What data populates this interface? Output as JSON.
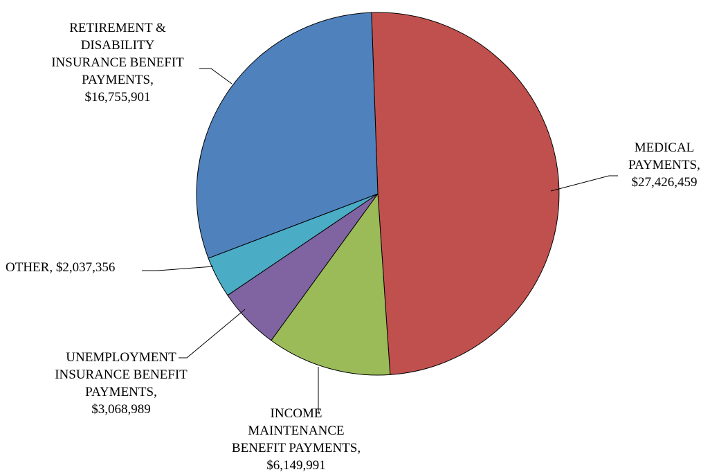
{
  "chart_data": {
    "type": "pie",
    "title": "",
    "start_angle_deg": -2,
    "direction": "clockwise",
    "slices": [
      {
        "label_lines": [
          "MEDICAL",
          "PAYMENTS,",
          "$27,426,459"
        ],
        "category": "MEDICAL PAYMENTS",
        "value": 27426459,
        "color": "#C0504D"
      },
      {
        "label_lines": [
          "INCOME",
          "MAINTENANCE",
          "BENEFIT PAYMENTS,",
          "$6,149,991"
        ],
        "category": "INCOME MAINTENANCE BENEFIT PAYMENTS",
        "value": 6149991,
        "color": "#9BBB59"
      },
      {
        "label_lines": [
          "UNEMPLOYMENT",
          "INSURANCE BENEFIT",
          "PAYMENTS,",
          "$3,068,989"
        ],
        "category": "UNEMPLOYMENT INSURANCE BENEFIT PAYMENTS",
        "value": 3068989,
        "color": "#8064A2"
      },
      {
        "label_lines": [
          "OTHER,  $2,037,356"
        ],
        "category": "OTHER",
        "value": 2037356,
        "color": "#4BACC6"
      },
      {
        "label_lines": [
          "RETIREMENT &",
          "DISABILITY",
          "INSURANCE BENEFIT",
          "PAYMENTS,",
          "$16,755,901"
        ],
        "category": "RETIREMENT & DISABILITY INSURANCE BENEFIT PAYMENTS",
        "value": 16755901,
        "color": "#4F81BD"
      }
    ]
  }
}
